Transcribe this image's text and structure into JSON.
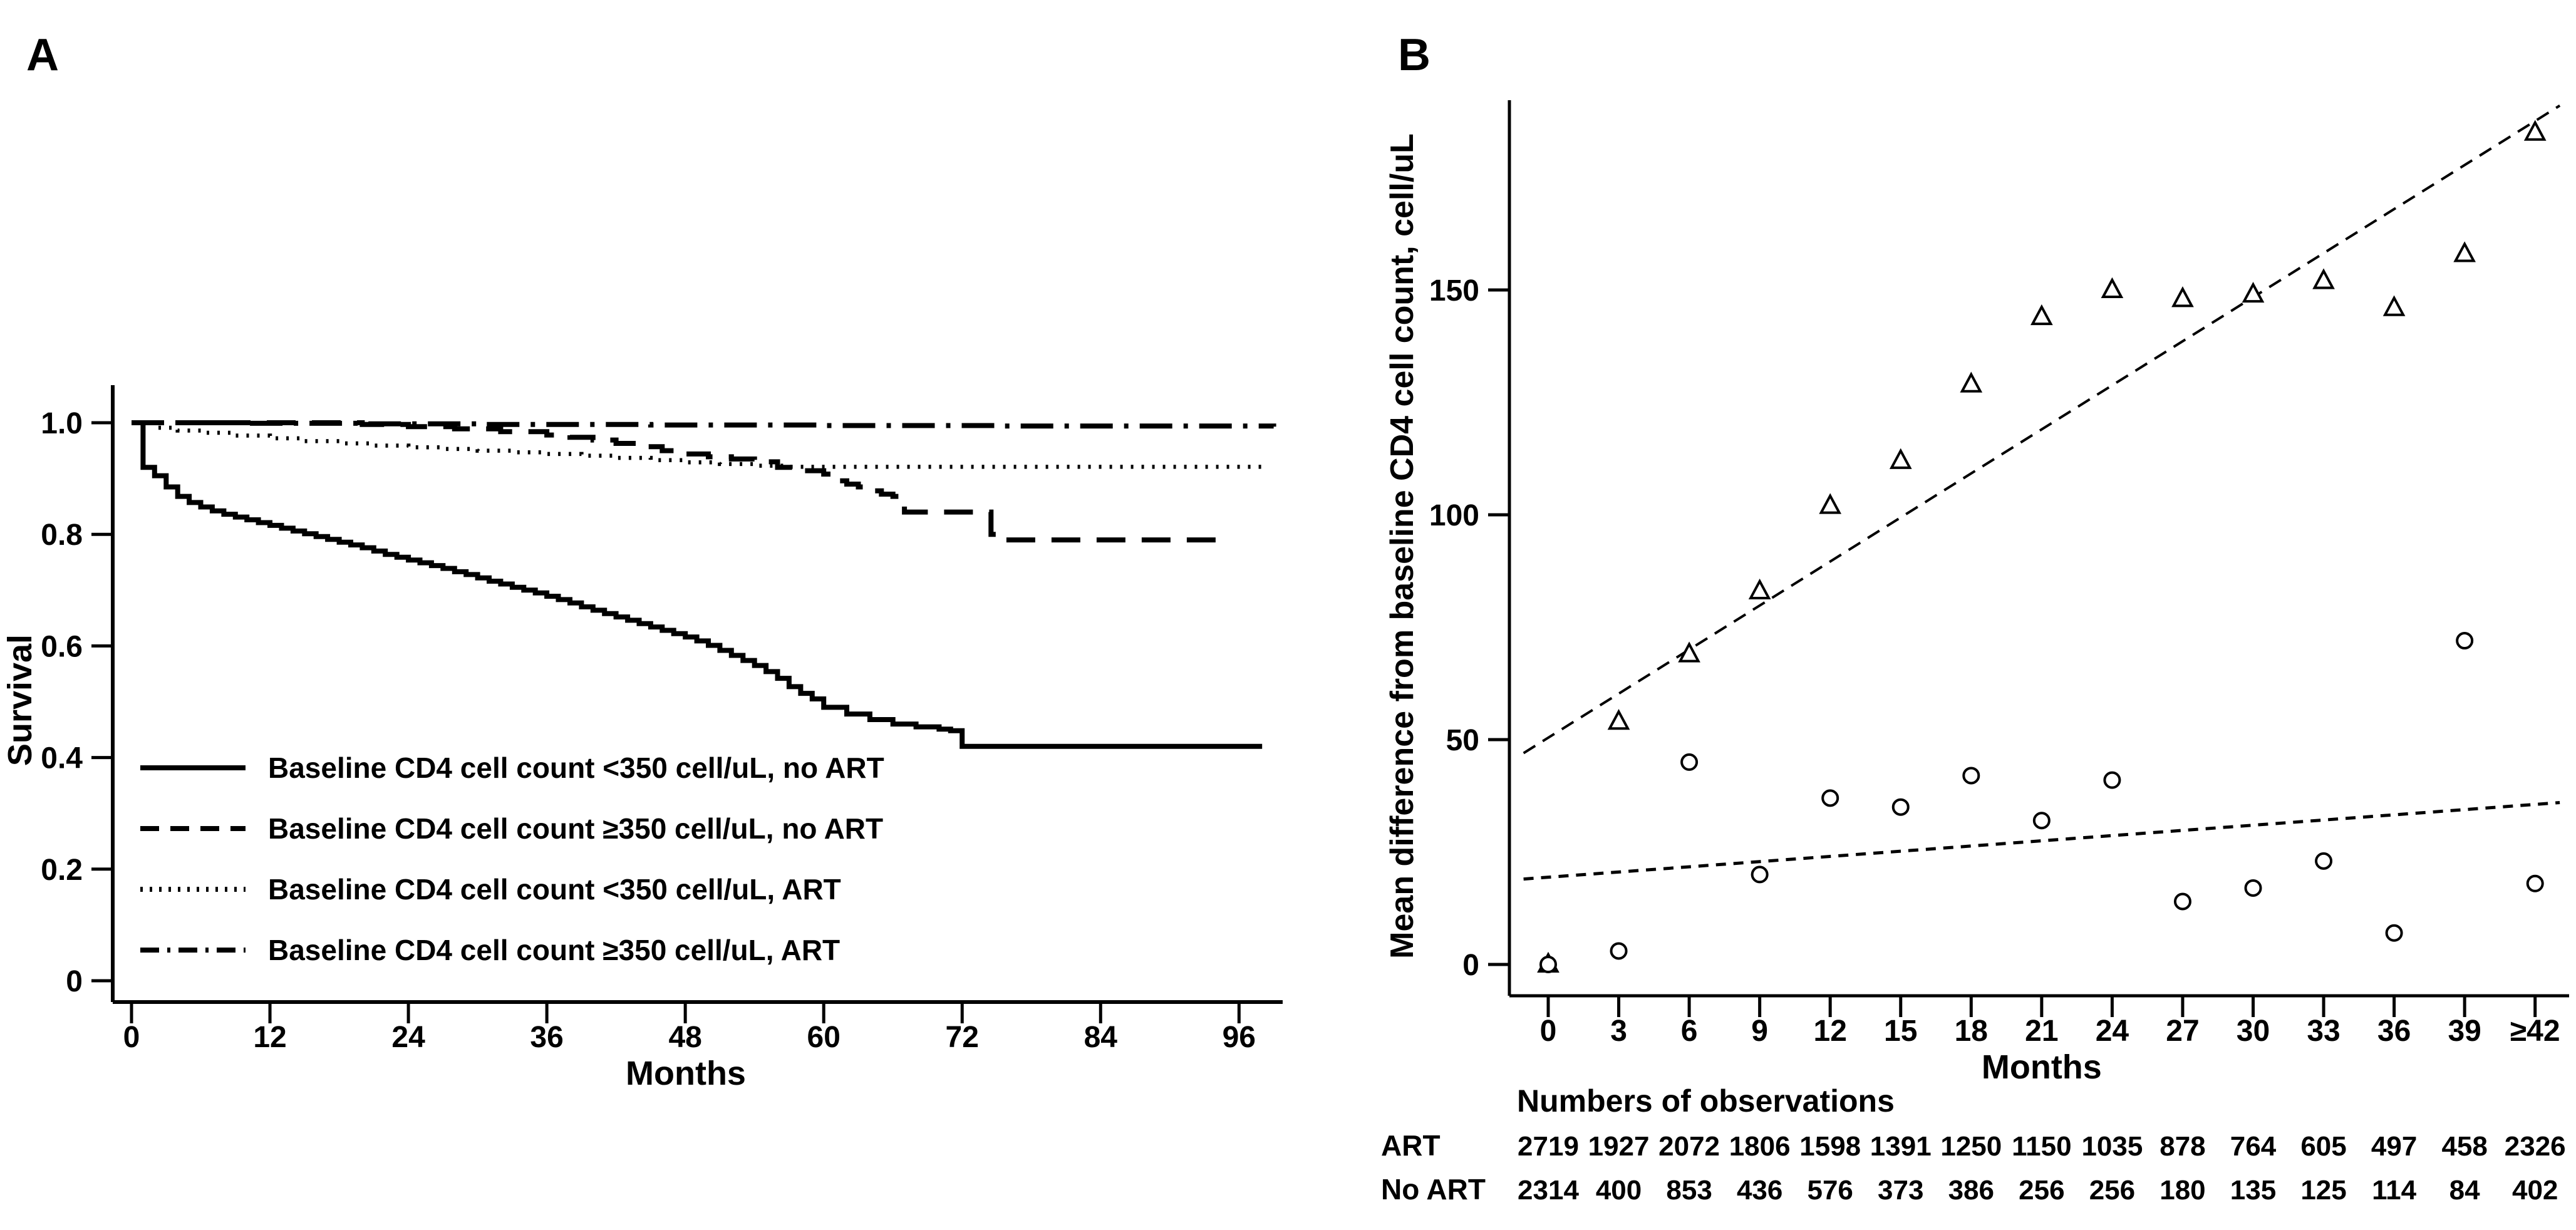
{
  "figure": {
    "colors": {
      "ink": "#000000",
      "background": "#ffffff"
    }
  },
  "chart_data": [
    {
      "type": "line",
      "panel_label": "A",
      "subtype": "kaplan-meier-survival",
      "xlabel": "Months",
      "ylabel": "Survival",
      "xlim": [
        0,
        99
      ],
      "ylim": [
        0,
        1.0
      ],
      "grid": false,
      "legend_position": "inside-bottom-left",
      "xticks": [
        0,
        12,
        24,
        36,
        48,
        60,
        72,
        84,
        96
      ],
      "yticks": [
        {
          "v": 1.0,
          "label": "1.0"
        },
        {
          "v": 0.8,
          "label": "0.8"
        },
        {
          "v": 0.6,
          "label": "0.6"
        },
        {
          "v": 0.4,
          "label": "0.4"
        },
        {
          "v": 0.2,
          "label": "0.2"
        },
        {
          "v": 0.0,
          "label": "0"
        }
      ],
      "series": [
        {
          "name": "Baseline CD4 cell count <350 cell/uL, no ART",
          "style": "solid",
          "points": [
            [
              0,
              1
            ],
            [
              1,
              0.92
            ],
            [
              2,
              0.905
            ],
            [
              3,
              0.885
            ],
            [
              4,
              0.868
            ],
            [
              5,
              0.857
            ],
            [
              6,
              0.849
            ],
            [
              7,
              0.842
            ],
            [
              8,
              0.836
            ],
            [
              9,
              0.831
            ],
            [
              10,
              0.826
            ],
            [
              11,
              0.821
            ],
            [
              12,
              0.816
            ],
            [
              13,
              0.811
            ],
            [
              14,
              0.806
            ],
            [
              15,
              0.801
            ],
            [
              16,
              0.796
            ],
            [
              17,
              0.791
            ],
            [
              18,
              0.786
            ],
            [
              19,
              0.781
            ],
            [
              20,
              0.776
            ],
            [
              21,
              0.77
            ],
            [
              22,
              0.764
            ],
            [
              23,
              0.759
            ],
            [
              24,
              0.754
            ],
            [
              25,
              0.749
            ],
            [
              26,
              0.744
            ],
            [
              27,
              0.739
            ],
            [
              28,
              0.733
            ],
            [
              29,
              0.728
            ],
            [
              30,
              0.722
            ],
            [
              31,
              0.716
            ],
            [
              32,
              0.711
            ],
            [
              33,
              0.705
            ],
            [
              34,
              0.7
            ],
            [
              35,
              0.695
            ],
            [
              36,
              0.689
            ],
            [
              37,
              0.683
            ],
            [
              38,
              0.677
            ],
            [
              39,
              0.67
            ],
            [
              40,
              0.664
            ],
            [
              41,
              0.658
            ],
            [
              42,
              0.652
            ],
            [
              43,
              0.646
            ],
            [
              44,
              0.64
            ],
            [
              45,
              0.634
            ],
            [
              46,
              0.628
            ],
            [
              47,
              0.622
            ],
            [
              48,
              0.616
            ],
            [
              49,
              0.609
            ],
            [
              50,
              0.601
            ],
            [
              51,
              0.592
            ],
            [
              52,
              0.583
            ],
            [
              53,
              0.574
            ],
            [
              54,
              0.565
            ],
            [
              55,
              0.554
            ],
            [
              56,
              0.542
            ],
            [
              57,
              0.527
            ],
            [
              58,
              0.515
            ],
            [
              59,
              0.505
            ],
            [
              60,
              0.49
            ],
            [
              62,
              0.478
            ],
            [
              64,
              0.468
            ],
            [
              66,
              0.46
            ],
            [
              68,
              0.455
            ],
            [
              70,
              0.451
            ],
            [
              71,
              0.448
            ],
            [
              72,
              0.42
            ],
            [
              98,
              0.42
            ]
          ]
        },
        {
          "name": "Baseline CD4 cell count ≥350 cell/uL, no ART",
          "style": "dashed",
          "points": [
            [
              0,
              1
            ],
            [
              16,
              1
            ],
            [
              20,
              0.997
            ],
            [
              24,
              0.993
            ],
            [
              28,
              0.989
            ],
            [
              32,
              0.984
            ],
            [
              36,
              0.978
            ],
            [
              38,
              0.974
            ],
            [
              40,
              0.969
            ],
            [
              42,
              0.963
            ],
            [
              44,
              0.957
            ],
            [
              46,
              0.95
            ],
            [
              48,
              0.944
            ],
            [
              50,
              0.939
            ],
            [
              52,
              0.935
            ],
            [
              54,
              0.93
            ],
            [
              56,
              0.92
            ],
            [
              58,
              0.914
            ],
            [
              60,
              0.908
            ],
            [
              61,
              0.896
            ],
            [
              62,
              0.89
            ],
            [
              63,
              0.885
            ],
            [
              64,
              0.878
            ],
            [
              65,
              0.872
            ],
            [
              66,
              0.868
            ],
            [
              67,
              0.84
            ],
            [
              74,
              0.84
            ],
            [
              74.5,
              0.8
            ],
            [
              75.5,
              0.79
            ],
            [
              94,
              0.79
            ]
          ]
        },
        {
          "name": "Baseline CD4 cell count <350 cell/uL,  ART",
          "style": "dotted",
          "points": [
            [
              0,
              1
            ],
            [
              2,
              0.991
            ],
            [
              4,
              0.986
            ],
            [
              6,
              0.982
            ],
            [
              9,
              0.977
            ],
            [
              12,
              0.972
            ],
            [
              15,
              0.967
            ],
            [
              18,
              0.963
            ],
            [
              21,
              0.959
            ],
            [
              24,
              0.956
            ],
            [
              27,
              0.953
            ],
            [
              30,
              0.95
            ],
            [
              33,
              0.947
            ],
            [
              36,
              0.944
            ],
            [
              39,
              0.941
            ],
            [
              42,
              0.937
            ],
            [
              45,
              0.933
            ],
            [
              48,
              0.929
            ],
            [
              51,
              0.926
            ],
            [
              54,
              0.923
            ],
            [
              57,
              0.921
            ],
            [
              98,
              0.921
            ]
          ]
        },
        {
          "name": "Baseline CD4 cell count ≥350 cell/uL, ART",
          "style": "dashdot",
          "points": [
            [
              0,
              1
            ],
            [
              10,
              0.999
            ],
            [
              20,
              0.998
            ],
            [
              30,
              0.997
            ],
            [
              45,
              0.996
            ],
            [
              60,
              0.995
            ],
            [
              75,
              0.994
            ],
            [
              99,
              0.993
            ]
          ]
        }
      ]
    },
    {
      "type": "scatter",
      "panel_label": "B",
      "xlabel": "Months",
      "ylabel": "Mean difference from baseline CD4 cell count, cell/uL",
      "ylim": [
        -5,
        192
      ],
      "grid": false,
      "x_labels": [
        "0",
        "3",
        "6",
        "9",
        "12",
        "15",
        "18",
        "21",
        "24",
        "27",
        "30",
        "33",
        "36",
        "39",
        "≥42"
      ],
      "yticks": [
        {
          "v": 0,
          "label": "0"
        },
        {
          "v": 50,
          "label": "50"
        },
        {
          "v": 100,
          "label": "100"
        },
        {
          "v": 150,
          "label": "150"
        }
      ],
      "series": [
        {
          "name": "ART",
          "marker": "triangle",
          "values": [
            0,
            54,
            69,
            83,
            102,
            112,
            129,
            144,
            150,
            148,
            149,
            152,
            146,
            158,
            185
          ]
        },
        {
          "name": "No ART",
          "marker": "circle",
          "values": [
            0,
            3,
            45,
            20,
            37,
            35,
            42,
            32,
            41,
            14,
            17,
            23,
            7,
            72,
            18
          ]
        }
      ],
      "trend_lines": [
        {
          "name": "art-trend",
          "style": "dashed",
          "x": [
            -0.35,
            14.35
          ],
          "y": [
            47,
            191
          ]
        },
        {
          "name": "no-art-trend",
          "style": "dashed",
          "x": [
            -0.35,
            14.35
          ],
          "y": [
            19,
            36
          ]
        }
      ],
      "observations": {
        "heading": "Numbers of observations",
        "rows": [
          {
            "label": "ART",
            "values": [
              "2719",
              "1927",
              "2072",
              "1806",
              "1598",
              "1391",
              "1250",
              "1150",
              "1035",
              "878",
              "764",
              "605",
              "497",
              "458",
              "2326"
            ]
          },
          {
            "label": "No ART",
            "values": [
              "2314",
              "400",
              "853",
              "436",
              "576",
              "373",
              "386",
              "256",
              "256",
              "180",
              "135",
              "125",
              "114",
              "84",
              "402"
            ]
          }
        ]
      }
    }
  ]
}
